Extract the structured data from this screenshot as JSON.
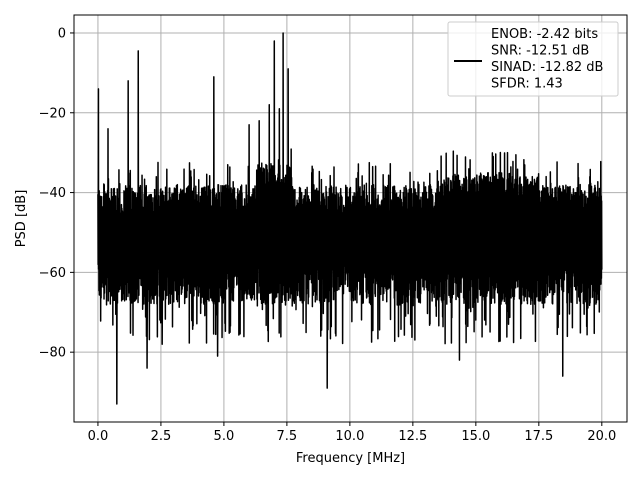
{
  "chart_data": {
    "type": "line",
    "title": "",
    "xlabel": "Frequency [MHz]",
    "ylabel": "PSD [dB]",
    "xlim": [
      -0.95,
      21.0
    ],
    "ylim": [
      -97.5,
      4.5
    ],
    "xticks": [
      0.0,
      2.5,
      5.0,
      7.5,
      10.0,
      12.5,
      15.0,
      17.5,
      20.0
    ],
    "xtick_labels": [
      "0.0",
      "2.5",
      "5.0",
      "7.5",
      "10.0",
      "12.5",
      "15.0",
      "17.5",
      "20.0"
    ],
    "yticks": [
      0,
      -20,
      -40,
      -60,
      -80
    ],
    "ytick_labels": [
      "0",
      "−20",
      "−40",
      "−60",
      "−80"
    ],
    "grid": true,
    "legend_position": "top-right",
    "series": [
      {
        "name": "ENOB: -2.42 bits\nSNR: -12.51 dB\nSINAD: -12.82 dB\nSFDR: 1.43",
        "legend_lines": [
          "ENOB: -2.42 bits",
          "SNR: -12.51 dB",
          "SINAD: -12.82 dB",
          "SFDR: 1.43"
        ],
        "color": "#000000",
        "description_of_shape": "dense noise floor",
        "noise_band": [
          -38,
          -68
        ],
        "spikes": [
          {
            "x": 0.02,
            "y": -14
          },
          {
            "x": 0.4,
            "y": -24
          },
          {
            "x": 0.75,
            "y": -93
          },
          {
            "x": 1.2,
            "y": -12
          },
          {
            "x": 1.6,
            "y": -4.5
          },
          {
            "x": 1.95,
            "y": -84
          },
          {
            "x": 2.55,
            "y": -78
          },
          {
            "x": 4.6,
            "y": -11
          },
          {
            "x": 4.75,
            "y": -81
          },
          {
            "x": 6.0,
            "y": -23
          },
          {
            "x": 6.4,
            "y": -22
          },
          {
            "x": 6.8,
            "y": -18
          },
          {
            "x": 7.0,
            "y": -2
          },
          {
            "x": 7.2,
            "y": -19
          },
          {
            "x": 7.35,
            "y": 0
          },
          {
            "x": 7.55,
            "y": -9
          },
          {
            "x": 9.1,
            "y": -89
          },
          {
            "x": 14.35,
            "y": -82
          },
          {
            "x": 18.45,
            "y": -86
          }
        ]
      }
    ]
  },
  "colors": {
    "line": "#000000",
    "grid": "#b0b0b0",
    "legend_border": "#cccccc",
    "background": "#ffffff"
  }
}
